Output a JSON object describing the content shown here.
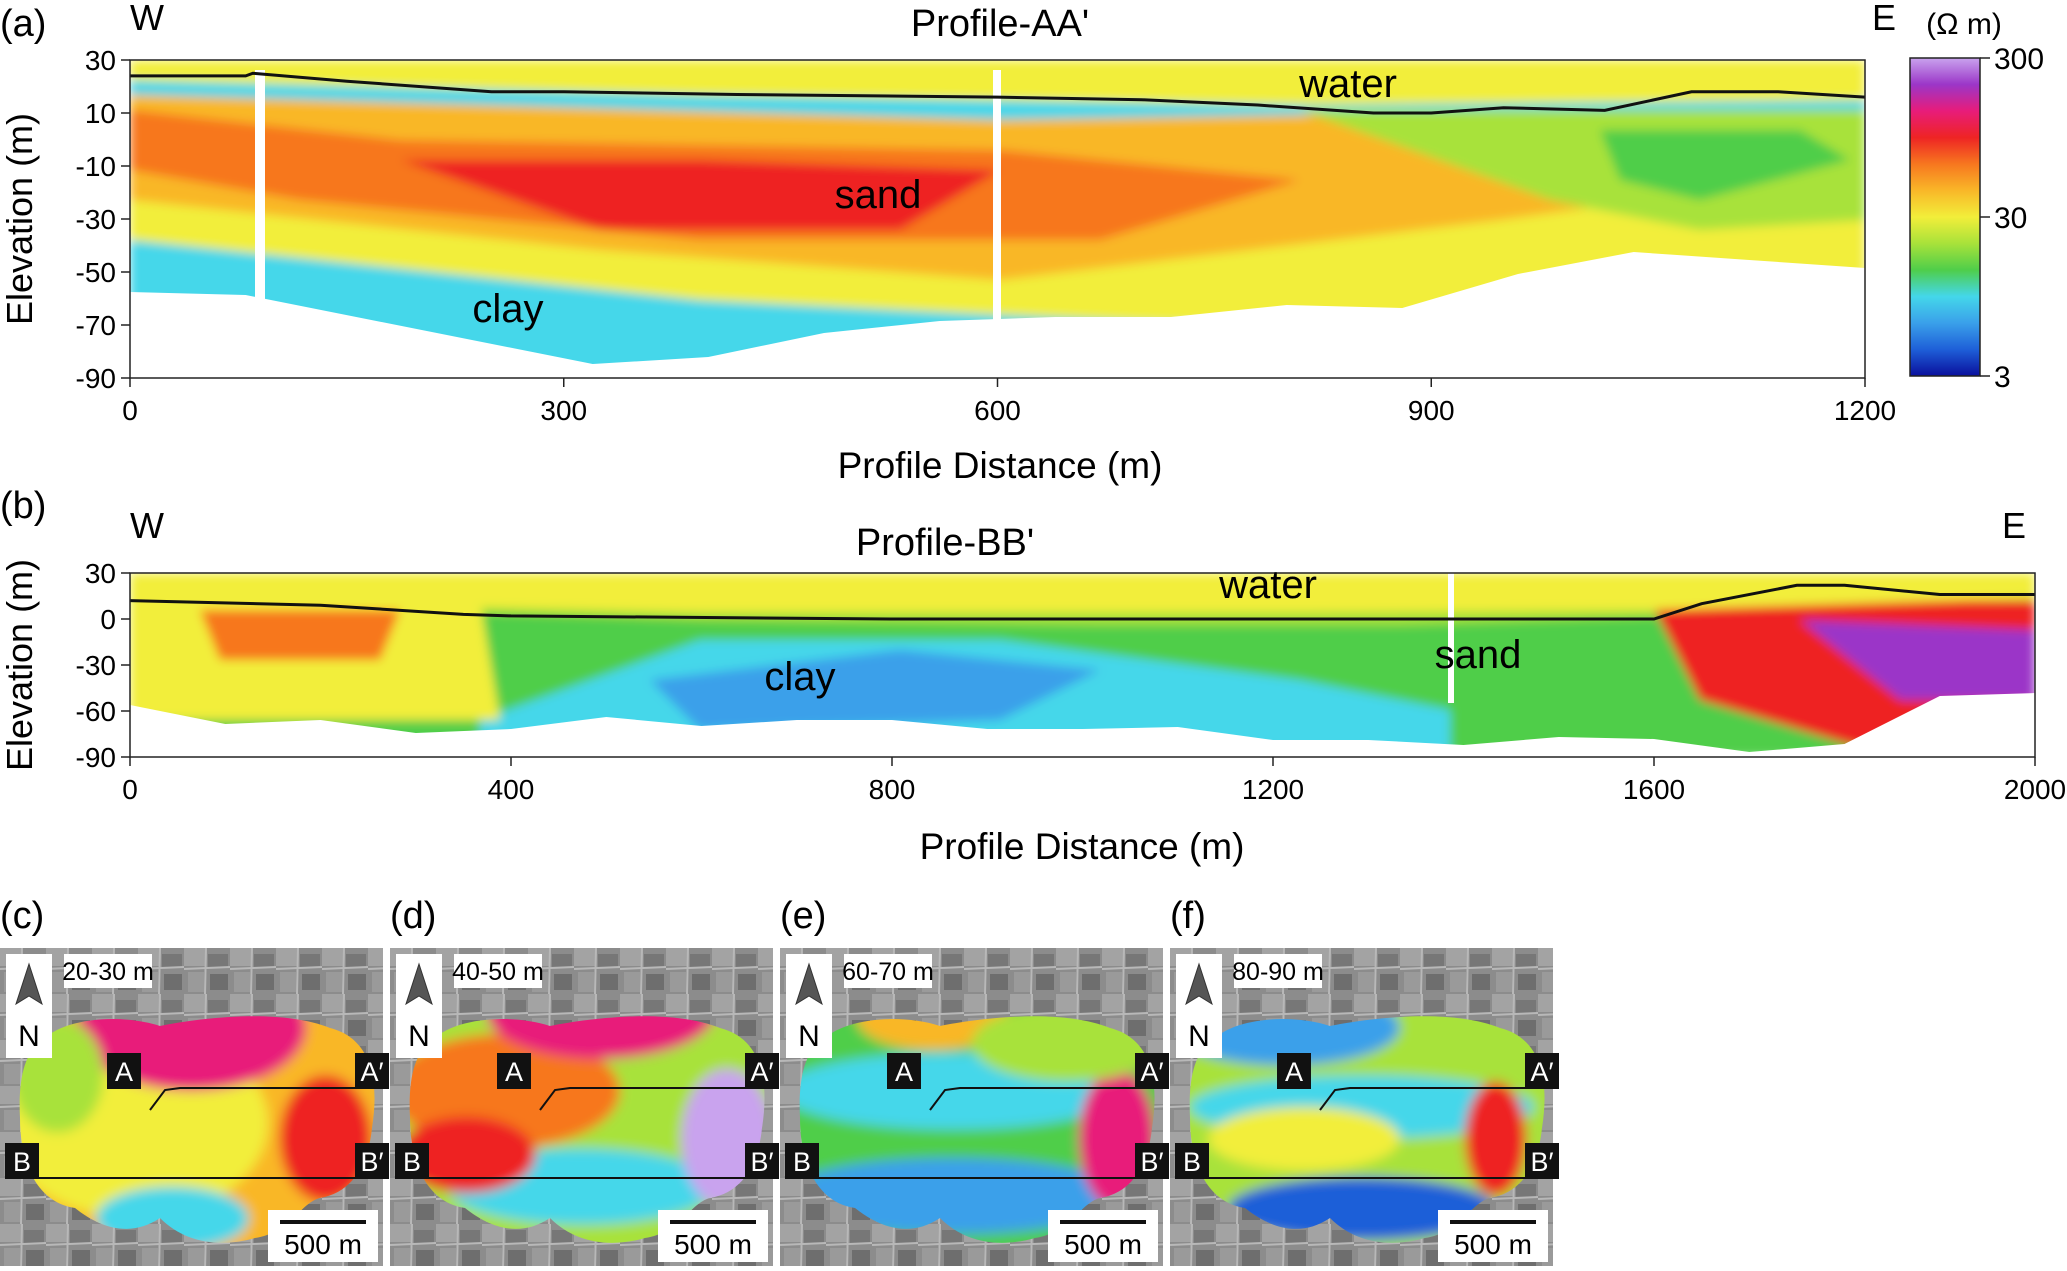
{
  "colorbar": {
    "unit_label": "(Ω m)",
    "ticks": [
      {
        "label": "300",
        "value": 300
      },
      {
        "label": "30",
        "value": 30
      },
      {
        "label": "3",
        "value": 3
      }
    ],
    "scale": "log",
    "range": [
      3,
      300
    ],
    "stops": [
      "#0a0f9c",
      "#1e5fd8",
      "#3aa0ea",
      "#44d7ea",
      "#4fce4a",
      "#a8e23a",
      "#f2ee3a",
      "#f9b728",
      "#f7771f",
      "#ee2424",
      "#e81c7a",
      "#9b36c8",
      "#c9a3ee"
    ]
  },
  "chart_data": [
    {
      "type": "heatmap",
      "panel_label": "(a)",
      "title": "Profile-AA'",
      "west_label": "W",
      "east_label": "E",
      "xlabel": "Profile Distance (m)",
      "ylabel": "Elevation (m)",
      "xlim": [
        0,
        1200
      ],
      "ylim": [
        -90,
        30
      ],
      "xticks": [
        0,
        300,
        600,
        900,
        1200
      ],
      "yticks": [
        30,
        10,
        -10,
        -30,
        -50,
        -70,
        -90
      ],
      "annotations": [
        "water",
        "sand",
        "clay"
      ],
      "surface_line": {
        "x": [
          0,
          80,
          85,
          150,
          250,
          300,
          420,
          600,
          700,
          780,
          860,
          900,
          950,
          1020,
          1080,
          1140,
          1200
        ],
        "elevation": [
          24,
          24,
          25,
          22,
          18,
          18,
          17,
          16,
          15,
          13,
          10,
          10,
          12,
          11,
          18,
          18,
          16
        ]
      },
      "zones": [
        {
          "name": "water",
          "resistivity": 35
        },
        {
          "name": "sand",
          "resistivity": 80
        },
        {
          "name": "clay",
          "resistivity": 6
        }
      ]
    },
    {
      "type": "heatmap",
      "panel_label": "(b)",
      "title": "Profile-BB'",
      "west_label": "W",
      "east_label": "E",
      "xlabel": "Profile Distance (m)",
      "ylabel": "Elevation (m)",
      "xlim": [
        0,
        2000
      ],
      "ylim": [
        -90,
        30
      ],
      "xticks": [
        0,
        400,
        800,
        1200,
        1600,
        2000
      ],
      "yticks": [
        30,
        0,
        -30,
        -60,
        -90
      ],
      "annotations": [
        "water",
        "sand",
        "clay"
      ],
      "surface_line": {
        "x": [
          0,
          200,
          350,
          400,
          800,
          1200,
          1600,
          1650,
          1750,
          1800,
          1900,
          2000
        ],
        "elevation": [
          12,
          9,
          3,
          2,
          0,
          0,
          0,
          10,
          22,
          22,
          16,
          16
        ]
      },
      "zones": [
        {
          "name": "water",
          "resistivity": 35
        },
        {
          "name": "sand",
          "resistivity": 20
        },
        {
          "name": "clay",
          "resistivity": 8
        }
      ]
    },
    {
      "type": "heatmap",
      "panel_label": "(c)",
      "depth_label": "20-30 m",
      "north_label": "N",
      "scale_label": "500 m",
      "markers": {
        "a": "A",
        "a_prime": "A′",
        "b": "B",
        "b_prime": "B′"
      }
    },
    {
      "type": "heatmap",
      "panel_label": "(d)",
      "depth_label": "40-50 m",
      "north_label": "N",
      "scale_label": "500 m",
      "markers": {
        "a": "A",
        "a_prime": "A′",
        "b": "B",
        "b_prime": "B′"
      }
    },
    {
      "type": "heatmap",
      "panel_label": "(e)",
      "depth_label": "60-70 m",
      "north_label": "N",
      "scale_label": "500 m",
      "markers": {
        "a": "A",
        "a_prime": "A′",
        "b": "B",
        "b_prime": "B′"
      }
    },
    {
      "type": "heatmap",
      "panel_label": "(f)",
      "depth_label": "80-90 m",
      "north_label": "N",
      "scale_label": "500 m",
      "markers": {
        "a": "A",
        "a_prime": "A′",
        "b": "B",
        "b_prime": "B′"
      }
    }
  ]
}
